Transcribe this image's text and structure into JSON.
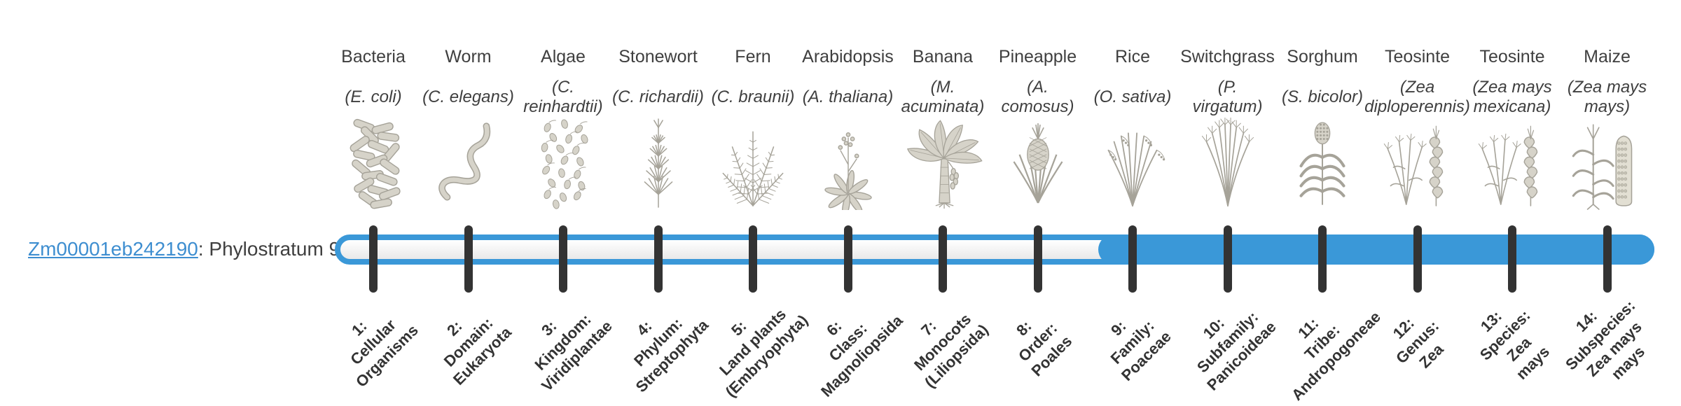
{
  "gene": {
    "id": "Zm00001eb242190",
    "suffix": ": Phylostratum 9",
    "phylostratum": 9
  },
  "timeline": {
    "strata_total": 14,
    "filled_from_stratum": 9,
    "filled_to_stratum": 14
  },
  "colors": {
    "bar_blue": "#3a98d8",
    "link_blue": "#3e8ed0",
    "tick_dark": "#333333",
    "text_dark": "#3f3f3f",
    "illustration_stroke": "#a6a399",
    "illustration_fill": "#d6d3c9"
  },
  "organisms": [
    {
      "stratum": 1,
      "common_name": "Bacteria",
      "species": "(E. coli)",
      "icon": "bacteria",
      "stratum_label": "1:\nCellular\nOrganisms"
    },
    {
      "stratum": 2,
      "common_name": "Worm",
      "species": "(C. elegans)",
      "icon": "worm",
      "stratum_label": "2:\nDomain:\nEukaryota"
    },
    {
      "stratum": 3,
      "common_name": "Algae",
      "species": "(C.\nreinhardtii)",
      "icon": "algae",
      "stratum_label": "3:\nKingdom:\nViridiplantae"
    },
    {
      "stratum": 4,
      "common_name": "Stonewort",
      "species": "(C. richardii)",
      "icon": "stonewort",
      "stratum_label": "4:\nPhylum:\nStreptophyta"
    },
    {
      "stratum": 5,
      "common_name": "Fern",
      "species": "(C. braunii)",
      "icon": "fern",
      "stratum_label": "5:\nLand plants\n(Embryophyta)"
    },
    {
      "stratum": 6,
      "common_name": "Arabidopsis",
      "species": "(A. thaliana)",
      "icon": "arabidopsis",
      "stratum_label": "6:\nClass:\nMagnoliopsida"
    },
    {
      "stratum": 7,
      "common_name": "Banana",
      "species": "(M.\nacuminata)",
      "icon": "banana",
      "stratum_label": "7:\nMonocots\n(Liliopsida)"
    },
    {
      "stratum": 8,
      "common_name": "Pineapple",
      "species": "(A.\ncomosus)",
      "icon": "pineapple",
      "stratum_label": "8:\nOrder:\nPoales"
    },
    {
      "stratum": 9,
      "common_name": "Rice",
      "species": "(O. sativa)",
      "icon": "rice",
      "stratum_label": "9:\nFamily:\nPoaceae"
    },
    {
      "stratum": 10,
      "common_name": "Switchgrass",
      "species": "(P.\nvirgatum)",
      "icon": "switchgrass",
      "stratum_label": "10:\nSubfamily:\nPanicoideae"
    },
    {
      "stratum": 11,
      "common_name": "Sorghum",
      "species": "(S. bicolor)",
      "icon": "sorghum",
      "stratum_label": "11:\nTribe:\nAndropogoneae"
    },
    {
      "stratum": 12,
      "common_name": "Teosinte",
      "species": "(Zea\ndiploperennis)",
      "icon": "teosinte",
      "stratum_label": "12:\nGenus:\nZea"
    },
    {
      "stratum": 13,
      "common_name": "Teosinte",
      "species": "(Zea mays\nmexicana)",
      "icon": "teosinte",
      "stratum_label": "13:\nSpecies:\nZea\nmays"
    },
    {
      "stratum": 14,
      "common_name": "Maize",
      "species": "(Zea mays\nmays)",
      "icon": "maize",
      "stratum_label": "14:\nSubspecies:\nZea mays\nmays"
    }
  ]
}
